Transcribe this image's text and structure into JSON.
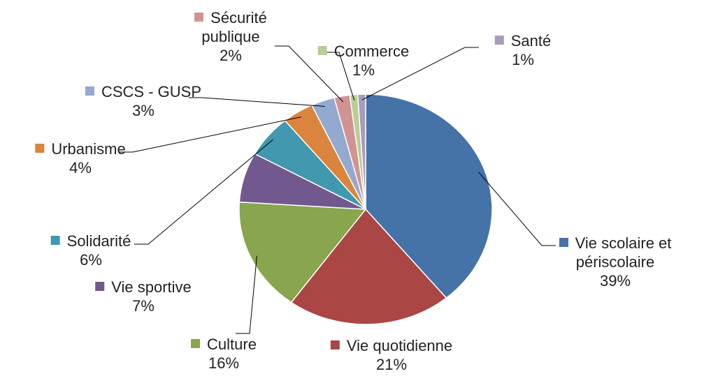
{
  "chart_data": {
    "type": "pie",
    "categories": [
      "Vie scolaire et périscolaire",
      "Vie quotidienne",
      "Culture",
      "Vie sportive",
      "Solidarité",
      "Urbanisme",
      "CSCS - GUSP",
      "Sécurité publique",
      "Commerce",
      "Santé"
    ],
    "values": [
      39,
      21,
      16,
      7,
      6,
      4,
      3,
      2,
      1,
      1
    ],
    "value_labels": [
      "39%",
      "21%",
      "16%",
      "7%",
      "6%",
      "4%",
      "3%",
      "2%",
      "1%",
      "1%"
    ],
    "colors": [
      "#4572a7",
      "#aa4643",
      "#89a54e",
      "#71588f",
      "#4198af",
      "#db843d",
      "#93a9cf",
      "#d19392",
      "#b9cd96",
      "#a99bbd"
    ]
  }
}
